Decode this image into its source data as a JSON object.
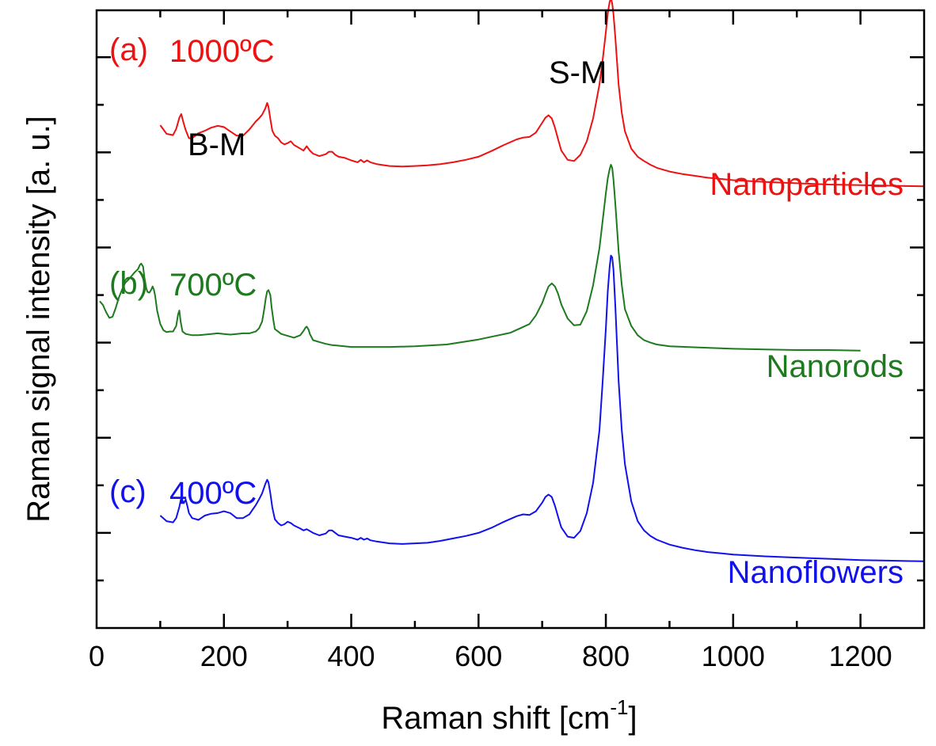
{
  "chart_data": {
    "type": "line",
    "title": "",
    "xlabel": "Raman shift [cm",
    "xlabel_sup": "-1",
    "xlabel_end": "]",
    "ylabel": "Raman signal intensity [a. u.]",
    "xlim": [
      0,
      1300
    ],
    "ylim": [
      0,
      100
    ],
    "x_ticks": [
      0,
      200,
      400,
      600,
      800,
      1000,
      1200
    ],
    "x_ticks_labels": [
      "0",
      "200",
      "400",
      "600",
      "800",
      "1000",
      "1200"
    ],
    "annotations": {
      "bm": "B-M",
      "sm": "S-M"
    },
    "series": [
      {
        "name": "Nanoparticles",
        "panel": "(a)",
        "temperature": "1000ºC",
        "color": "#ee1111",
        "x": [
          100,
          110,
          120,
          125,
          130,
          133,
          136,
          140,
          145,
          150,
          160,
          170,
          180,
          190,
          200,
          210,
          220,
          230,
          240,
          250,
          255,
          260,
          265,
          268,
          270,
          273,
          276,
          280,
          285,
          290,
          295,
          300,
          305,
          310,
          320,
          325,
          330,
          335,
          340,
          350,
          360,
          365,
          370,
          375,
          380,
          390,
          400,
          410,
          415,
          420,
          425,
          430,
          440,
          460,
          480,
          500,
          520,
          540,
          560,
          580,
          600,
          620,
          640,
          660,
          670,
          680,
          690,
          700,
          705,
          710,
          715,
          720,
          725,
          730,
          740,
          750,
          760,
          770,
          780,
          790,
          795,
          800,
          803,
          806,
          808,
          810,
          812,
          815,
          820,
          825,
          830,
          840,
          850,
          860,
          870,
          880,
          900,
          920,
          940,
          960,
          980,
          1000,
          1050,
          1100,
          1150,
          1200,
          1250,
          1300
        ],
        "values": [
          81.4,
          80.0,
          79.8,
          80.8,
          82.6,
          83.2,
          82.0,
          80.6,
          79.3,
          79.3,
          80.1,
          80.5,
          81.0,
          81.3,
          81.1,
          80.4,
          79.7,
          79.7,
          80.7,
          82.0,
          82.5,
          83.1,
          84.1,
          85.0,
          84.4,
          82.4,
          80.5,
          79.7,
          79.3,
          78.6,
          78.3,
          78.5,
          78.8,
          78.2,
          77.6,
          77.3,
          78.0,
          77.3,
          76.8,
          76.4,
          76.7,
          77.1,
          77.1,
          76.6,
          76.3,
          76.1,
          75.7,
          75.4,
          75.8,
          75.4,
          75.7,
          75.4,
          75.1,
          74.8,
          74.7,
          74.8,
          74.9,
          75.1,
          75.4,
          75.8,
          76.3,
          77.2,
          78.2,
          79.1,
          79.4,
          79.5,
          80.2,
          81.8,
          82.6,
          83.0,
          82.5,
          81.0,
          79.1,
          77.3,
          75.8,
          75.6,
          76.6,
          78.8,
          82.5,
          88.0,
          92.0,
          96.5,
          99.5,
          101.4,
          101.9,
          101.1,
          99.4,
          95.5,
          88.0,
          83.4,
          80.4,
          77.6,
          76.3,
          75.6,
          75.0,
          74.5,
          73.9,
          73.5,
          73.2,
          72.9,
          72.7,
          72.5,
          72.2,
          72.0,
          71.8,
          71.7,
          71.6,
          71.5
        ]
      },
      {
        "name": "Nanorods",
        "panel": "(b)",
        "temperature": "700ºC",
        "color": "#1e7a1e",
        "x": [
          5,
          10,
          15,
          20,
          25,
          30,
          35,
          40,
          45,
          50,
          55,
          60,
          65,
          68,
          70,
          73,
          75,
          78,
          80,
          83,
          86,
          88,
          90,
          92,
          95,
          100,
          105,
          110,
          115,
          120,
          125,
          128,
          130,
          132,
          135,
          140,
          150,
          160,
          170,
          180,
          190,
          200,
          210,
          220,
          230,
          240,
          250,
          255,
          260,
          263,
          266,
          268,
          270,
          273,
          275,
          278,
          280,
          285,
          290,
          300,
          310,
          320,
          325,
          328,
          330,
          333,
          335,
          340,
          350,
          360,
          370,
          380,
          400,
          430,
          460,
          500,
          550,
          600,
          650,
          680,
          690,
          700,
          705,
          710,
          715,
          720,
          725,
          730,
          740,
          750,
          760,
          770,
          780,
          790,
          795,
          800,
          803,
          806,
          808,
          810,
          812,
          815,
          820,
          825,
          830,
          840,
          850,
          860,
          870,
          880,
          900,
          950,
          1000,
          1050,
          1100,
          1150,
          1200
        ],
        "values": [
          52.9,
          52.3,
          51.1,
          50.2,
          50.4,
          51.8,
          53.5,
          54.8,
          55.9,
          56.4,
          57.0,
          57.6,
          58.1,
          58.8,
          59.0,
          58.5,
          56.8,
          55.0,
          54.4,
          54.3,
          54.8,
          55.3,
          54.8,
          53.7,
          51.4,
          49.2,
          48.2,
          47.9,
          48.0,
          48.0,
          48.9,
          50.8,
          51.4,
          49.6,
          48.0,
          47.6,
          47.4,
          47.4,
          47.5,
          47.6,
          47.7,
          47.6,
          47.5,
          47.6,
          47.7,
          47.7,
          48.0,
          48.5,
          49.6,
          51.4,
          53.5,
          54.5,
          54.7,
          53.9,
          51.8,
          49.6,
          48.4,
          48.0,
          47.6,
          47.3,
          47.0,
          47.4,
          48.1,
          48.6,
          48.8,
          48.3,
          47.6,
          46.6,
          46.3,
          46.0,
          45.8,
          45.7,
          45.5,
          45.5,
          45.5,
          45.6,
          45.9,
          46.7,
          47.8,
          49.2,
          50.6,
          52.6,
          54.0,
          55.3,
          55.8,
          55.3,
          54.1,
          52.4,
          50.1,
          49.0,
          49.1,
          51.3,
          55.5,
          61.5,
          66.0,
          70.4,
          72.8,
          74.3,
          75.0,
          74.5,
          72.6,
          68.6,
          61.0,
          55.5,
          51.6,
          48.9,
          47.4,
          46.6,
          46.2,
          45.9,
          45.6,
          45.4,
          45.2,
          45.1,
          45.0,
          45.0,
          44.9
        ]
      },
      {
        "name": "Nanoflowers",
        "panel": "(c)",
        "temperature": "400ºC",
        "color": "#1111ee",
        "x": [
          100,
          110,
          120,
          125,
          130,
          133,
          135,
          137,
          140,
          143,
          145,
          150,
          160,
          170,
          180,
          190,
          200,
          210,
          220,
          230,
          240,
          250,
          255,
          260,
          265,
          268,
          270,
          273,
          276,
          280,
          285,
          290,
          295,
          300,
          305,
          310,
          320,
          325,
          330,
          340,
          350,
          360,
          365,
          370,
          375,
          380,
          390,
          400,
          410,
          415,
          420,
          425,
          430,
          440,
          460,
          480,
          500,
          520,
          540,
          560,
          580,
          600,
          620,
          640,
          660,
          670,
          680,
          690,
          700,
          705,
          710,
          715,
          720,
          725,
          730,
          740,
          750,
          760,
          770,
          780,
          790,
          795,
          800,
          803,
          806,
          808,
          810,
          812,
          815,
          820,
          825,
          830,
          840,
          850,
          860,
          870,
          880,
          900,
          920,
          940,
          960,
          980,
          1000,
          1050,
          1100,
          1150,
          1200,
          1250,
          1300
        ],
        "values": [
          18.2,
          17.3,
          17.1,
          17.8,
          19.6,
          21.1,
          20.6,
          20.2,
          20.8,
          19.6,
          18.6,
          17.8,
          17.5,
          18.2,
          18.5,
          18.6,
          18.9,
          18.6,
          17.8,
          17.8,
          18.4,
          19.9,
          20.8,
          21.8,
          23.3,
          24.0,
          23.6,
          21.8,
          19.5,
          17.6,
          17.0,
          16.6,
          16.8,
          17.2,
          17.0,
          16.6,
          16.1,
          15.8,
          16.0,
          15.4,
          15.0,
          15.3,
          15.8,
          15.8,
          15.4,
          15.0,
          14.8,
          14.6,
          14.3,
          14.6,
          14.3,
          14.5,
          14.2,
          14.0,
          13.7,
          13.6,
          13.7,
          13.8,
          14.1,
          14.5,
          14.9,
          15.4,
          16.2,
          17.2,
          18.1,
          18.4,
          18.3,
          18.9,
          20.3,
          21.2,
          21.6,
          21.2,
          19.8,
          18.0,
          16.3,
          14.8,
          14.6,
          15.7,
          18.6,
          23.5,
          32.0,
          40.0,
          48.5,
          54.5,
          58.5,
          60.3,
          60.0,
          58.0,
          52.0,
          40.0,
          32.0,
          26.5,
          20.5,
          17.3,
          15.8,
          14.9,
          14.3,
          13.5,
          13.0,
          12.6,
          12.3,
          12.1,
          11.9,
          11.6,
          11.4,
          11.2,
          11.0,
          10.9,
          10.8
        ]
      }
    ]
  }
}
